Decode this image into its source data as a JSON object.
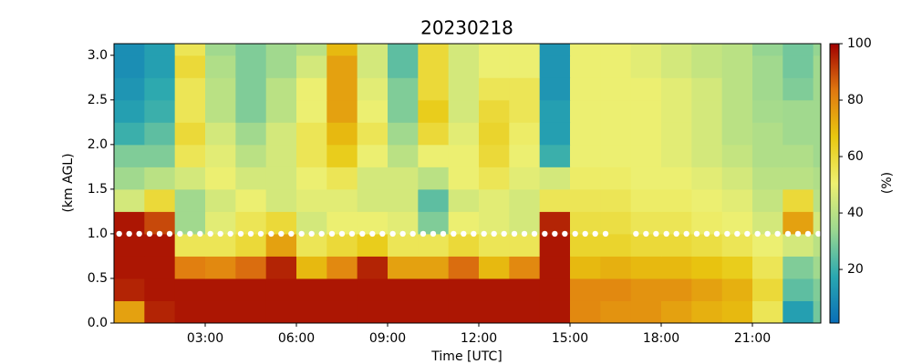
{
  "chart_data": {
    "type": "heatmap",
    "title": "20230218",
    "xlabel": "Time [UTC]",
    "ylabel": "(km AGL)",
    "colorbar_label": "(%)",
    "x": [
      0,
      1,
      2,
      3,
      4,
      5,
      6,
      7,
      8,
      9,
      10,
      11,
      12,
      13,
      14,
      15,
      16,
      17,
      18,
      19,
      20,
      21,
      22,
      23,
      23.25
    ],
    "y": [
      0,
      0.25,
      0.5,
      0.75,
      1.0,
      1.25,
      1.5,
      1.75,
      2.0,
      2.25,
      2.5,
      2.75,
      3.0,
      3.13
    ],
    "z": [
      [
        75,
        95,
        97,
        97,
        97,
        97,
        97,
        97,
        97,
        97,
        97,
        97,
        97,
        97,
        97,
        80,
        78,
        78,
        75,
        72,
        70,
        55,
        15,
        28
      ],
      [
        95,
        97,
        97,
        97,
        97,
        97,
        97,
        97,
        97,
        97,
        97,
        97,
        97,
        97,
        97,
        80,
        80,
        78,
        78,
        75,
        72,
        60,
        25,
        30
      ],
      [
        97,
        97,
        82,
        80,
        85,
        95,
        70,
        80,
        95,
        75,
        75,
        85,
        70,
        80,
        97,
        70,
        72,
        70,
        70,
        68,
        65,
        55,
        30,
        35
      ],
      [
        97,
        97,
        55,
        55,
        60,
        75,
        55,
        60,
        65,
        55,
        55,
        60,
        55,
        55,
        97,
        62,
        62,
        60,
        60,
        58,
        55,
        50,
        45,
        40
      ],
      [
        97,
        90,
        35,
        48,
        55,
        60,
        45,
        50,
        50,
        48,
        30,
        50,
        48,
        45,
        95,
        58,
        58,
        55,
        55,
        52,
        50,
        45,
        75,
        45
      ],
      [
        45,
        60,
        35,
        45,
        50,
        45,
        48,
        48,
        45,
        45,
        25,
        45,
        48,
        45,
        55,
        55,
        55,
        52,
        52,
        50,
        48,
        42,
        60,
        40
      ],
      [
        35,
        40,
        45,
        50,
        45,
        45,
        50,
        55,
        45,
        45,
        40,
        50,
        55,
        48,
        45,
        52,
        52,
        50,
        50,
        48,
        45,
        40,
        40,
        38
      ],
      [
        30,
        30,
        55,
        48,
        40,
        45,
        55,
        65,
        50,
        40,
        50,
        50,
        60,
        50,
        20,
        50,
        50,
        50,
        48,
        45,
        42,
        38,
        38,
        35
      ],
      [
        20,
        25,
        60,
        45,
        35,
        45,
        55,
        70,
        55,
        35,
        60,
        48,
        62,
        52,
        15,
        50,
        50,
        50,
        48,
        45,
        40,
        38,
        35,
        35
      ],
      [
        15,
        20,
        55,
        40,
        30,
        40,
        50,
        75,
        50,
        30,
        65,
        45,
        60,
        55,
        15,
        50,
        50,
        50,
        48,
        45,
        40,
        36,
        35,
        35
      ],
      [
        12,
        18,
        55,
        40,
        30,
        40,
        50,
        75,
        48,
        30,
        60,
        45,
        55,
        55,
        12,
        50,
        50,
        50,
        48,
        45,
        40,
        35,
        30,
        35
      ],
      [
        10,
        15,
        60,
        38,
        30,
        35,
        45,
        75,
        45,
        25,
        60,
        45,
        50,
        50,
        12,
        50,
        50,
        48,
        45,
        42,
        40,
        35,
        28,
        35
      ],
      [
        10,
        15,
        55,
        35,
        30,
        35,
        40,
        70,
        45,
        25,
        60,
        45,
        50,
        50,
        12,
        50,
        50,
        48,
        45,
        42,
        40,
        33,
        28,
        33
      ]
    ],
    "xlim": [
      0,
      23.25
    ],
    "ylim": [
      0,
      3.13
    ],
    "clim": [
      1,
      100
    ],
    "xticks": [
      {
        "value": 3,
        "label": "03:00"
      },
      {
        "value": 6,
        "label": "06:00"
      },
      {
        "value": 9,
        "label": "09:00"
      },
      {
        "value": 12,
        "label": "12:00"
      },
      {
        "value": 15,
        "label": "15:00"
      },
      {
        "value": 18,
        "label": "18:00"
      },
      {
        "value": 21,
        "label": "21:00"
      }
    ],
    "yticks": [
      {
        "value": 0,
        "label": "0.0"
      },
      0.5,
      {
        "value": 1,
        "label": "1.0"
      },
      1.5,
      {
        "value": 2,
        "label": "2.0"
      },
      2.5,
      {
        "value": 3,
        "label": "3.0"
      }
    ],
    "cticks": [
      20,
      40,
      60,
      80,
      100
    ],
    "colormap": [
      "#0a6eb8",
      "#2aa8b0",
      "#9cd890",
      "#eef070",
      "#e8c810",
      "#e07810",
      "#a00000"
    ],
    "points": {
      "color": "#ffffff",
      "x": [
        0.17,
        0.5,
        0.83,
        1.17,
        1.5,
        1.83,
        2.17,
        2.5,
        2.83,
        3.17,
        3.5,
        3.83,
        4.17,
        4.5,
        4.83,
        5.17,
        5.5,
        5.83,
        6.17,
        6.5,
        6.83,
        7.17,
        7.5,
        7.83,
        8.17,
        8.5,
        8.83,
        9.17,
        9.5,
        9.83,
        10.17,
        10.5,
        10.83,
        11.17,
        11.5,
        11.83,
        12.17,
        12.5,
        12.83,
        13.17,
        13.5,
        13.83,
        14.17,
        14.5,
        14.83,
        15.17,
        15.5,
        15.83,
        16.17,
        17.17,
        17.5,
        17.83,
        18.17,
        18.5,
        18.83,
        19.17,
        19.5,
        19.83,
        20.17,
        20.5,
        20.83,
        21.17,
        21.5,
        21.83,
        22.17,
        22.5,
        22.83,
        23.17
      ],
      "y": [
        1,
        1,
        1,
        1,
        1,
        1,
        1,
        1,
        1,
        1,
        1,
        1,
        1,
        1,
        1,
        1,
        1,
        1,
        1,
        1,
        1,
        1,
        1,
        1,
        1,
        1,
        1,
        1,
        1,
        1,
        1,
        1,
        1,
        1,
        1,
        1,
        1,
        1,
        1,
        1,
        1,
        1,
        1,
        1,
        1,
        1,
        1,
        1,
        1,
        1,
        1,
        1,
        1,
        1,
        1,
        1,
        1,
        1,
        1,
        1,
        1,
        1,
        1,
        1,
        1,
        1,
        1,
        1
      ]
    }
  }
}
